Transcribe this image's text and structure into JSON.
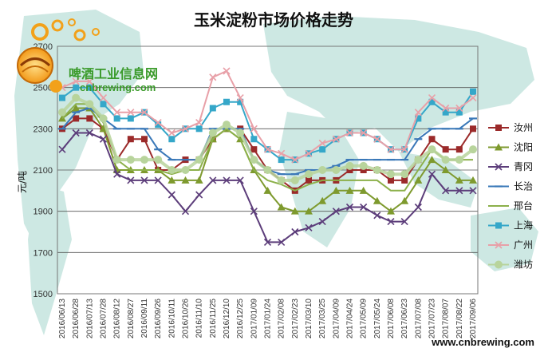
{
  "chart_data": {
    "type": "line",
    "title": "玉米淀粉市场价格走势",
    "ylabel": "元/吨",
    "xlabel": "",
    "ylim": [
      1500,
      2700
    ],
    "yticks": [
      1500,
      1700,
      1900,
      2100,
      2300,
      2500,
      2700
    ],
    "grid": true,
    "legend_position": "right",
    "x": [
      "2016/06/13",
      "2016/06/28",
      "2016/07/13",
      "2016/07/28",
      "2016/08/12",
      "2016/08/27",
      "2016/09/11",
      "2016/09/26",
      "2016/10/11",
      "2016/10/26",
      "2016/11/10",
      "2016/11/25",
      "2016/12/10",
      "2016/12/25",
      "2017/01/09",
      "2017/01/24",
      "2017/02/08",
      "2017/02/23",
      "2017/03/10",
      "2017/03/25",
      "2017/04/09",
      "2017/04/24",
      "2017/05/09",
      "2017/05/24",
      "2017/06/08",
      "2017/06/23",
      "2017/07/08",
      "2017/07/23",
      "2017/08/07",
      "2017/08/22",
      "2017/09/06"
    ],
    "series": [
      {
        "name": "汝州",
        "color": "#9b2a2a",
        "marker": "square",
        "values": [
          2300,
          2350,
          2350,
          2300,
          2150,
          2250,
          2250,
          2100,
          2100,
          2150,
          2150,
          2250,
          2300,
          2300,
          2200,
          2100,
          2050,
          2000,
          2050,
          2050,
          2050,
          2100,
          2100,
          2100,
          2050,
          2050,
          2150,
          2250,
          2200,
          2200,
          2300
        ]
      },
      {
        "name": "沈阳",
        "color": "#7e9a2e",
        "marker": "triangle",
        "values": [
          2350,
          2400,
          2400,
          2300,
          2100,
          2100,
          2100,
          2100,
          2050,
          2050,
          2050,
          2250,
          2300,
          2250,
          2100,
          2000,
          1920,
          1900,
          1900,
          1950,
          2000,
          2000,
          2000,
          1950,
          1900,
          1950,
          2050,
          2150,
          2100,
          2050,
          2050
        ]
      },
      {
        "name": "青冈",
        "color": "#5c3d7a",
        "marker": "x",
        "values": [
          2200,
          2280,
          2280,
          2250,
          2080,
          2050,
          2050,
          2050,
          1980,
          1900,
          1980,
          2050,
          2050,
          2050,
          1900,
          1750,
          1750,
          1800,
          1820,
          1850,
          1900,
          1920,
          1920,
          1880,
          1850,
          1850,
          1920,
          2080,
          2000,
          2000,
          2000
        ]
      },
      {
        "name": "长治",
        "color": "#3a78b8",
        "marker": "dash",
        "values": [
          2300,
          2380,
          2400,
          2350,
          2300,
          2300,
          2300,
          2200,
          2150,
          2150,
          2150,
          2300,
          2300,
          2300,
          2150,
          2100,
          2080,
          2080,
          2100,
          2100,
          2120,
          2150,
          2150,
          2150,
          2150,
          2150,
          2250,
          2300,
          2300,
          2300,
          2350
        ]
      },
      {
        "name": "邢台",
        "color": "#8cb04a",
        "marker": "line",
        "values": [
          2350,
          2420,
          2420,
          2330,
          2150,
          2100,
          2100,
          2100,
          2080,
          2100,
          2100,
          2250,
          2300,
          2250,
          2100,
          2050,
          2030,
          2000,
          2030,
          2050,
          2050,
          2050,
          2050,
          2050,
          2000,
          2000,
          2100,
          2200,
          2150,
          2150,
          2150
        ]
      },
      {
        "name": "上海",
        "color": "#35a7c9",
        "marker": "square",
        "values": [
          2450,
          2500,
          2500,
          2420,
          2350,
          2350,
          2380,
          2320,
          2250,
          2300,
          2300,
          2400,
          2430,
          2430,
          2250,
          2200,
          2150,
          2150,
          2180,
          2200,
          2250,
          2280,
          2280,
          2250,
          2200,
          2200,
          2350,
          2430,
          2380,
          2380,
          2480
        ]
      },
      {
        "name": "广州",
        "color": "#e8a0a8",
        "marker": "x",
        "values": [
          2500,
          2530,
          2530,
          2450,
          2380,
          2380,
          2380,
          2330,
          2280,
          2300,
          2330,
          2550,
          2580,
          2450,
          2300,
          2200,
          2180,
          2150,
          2180,
          2230,
          2250,
          2280,
          2280,
          2250,
          2200,
          2200,
          2380,
          2450,
          2400,
          2400,
          2450
        ]
      },
      {
        "name": "潍坊",
        "color": "#b8d49c",
        "marker": "circle",
        "values": [
          2380,
          2450,
          2420,
          2350,
          2150,
          2150,
          2150,
          2150,
          2100,
          2100,
          2150,
          2280,
          2320,
          2280,
          2150,
          2100,
          2050,
          2050,
          2080,
          2100,
          2100,
          2120,
          2120,
          2100,
          2080,
          2080,
          2150,
          2200,
          2150,
          2150,
          2200
        ]
      }
    ]
  },
  "watermark": {
    "logo_text": "啤酒工业信息网",
    "logo_sub": "cnbrewing.com",
    "site": "www.cnbrewing.com"
  },
  "colors": {
    "map_fill": "#c8e6e0",
    "background": "#ffffff",
    "grid": "#555555"
  },
  "icons": {
    "logo": "brewing-logo-icon"
  }
}
